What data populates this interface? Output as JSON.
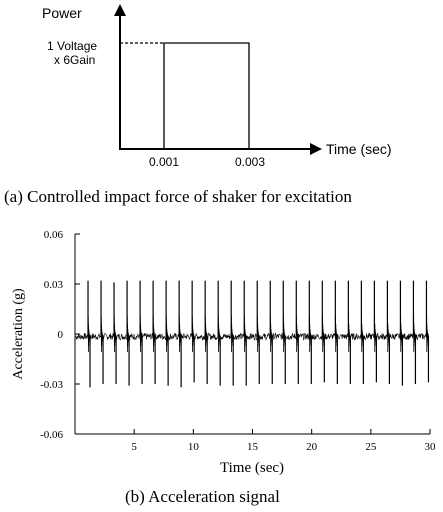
{
  "charts": {
    "a": {
      "caption": "(a) Controlled impact force of shaker for excitation",
      "ylabel": "Power",
      "xlabel": "Time (sec)",
      "annotation_line1": "1 Voltage",
      "annotation_line2": "x 6Gain"
    },
    "b": {
      "caption": "(b) Acceleration signal",
      "ylabel": "Acceleration (g)",
      "xlabel": "Time (sec)"
    }
  },
  "chart_data": [
    {
      "type": "line",
      "title": "",
      "xlabel": "Time (sec)",
      "ylabel": "Power",
      "x_ticks": [
        "0.001",
        "0.003"
      ],
      "series": [
        {
          "x": [
            0.001,
            0.001,
            0.003,
            0.003
          ],
          "y": [
            0,
            6,
            6,
            0
          ]
        }
      ],
      "annotation": "1 Voltage x 6Gain",
      "grid": false
    },
    {
      "type": "line",
      "title": "",
      "xlabel": "Time (sec)",
      "ylabel": "Acceleration (g)",
      "xlim": [
        0,
        30
      ],
      "ylim": [
        -0.06,
        0.06
      ],
      "x_ticks": [
        5,
        10,
        15,
        20,
        25,
        30
      ],
      "y_ticks": [
        "0.06",
        "0.03",
        "0",
        "-0.03",
        "-0.06"
      ],
      "baseline": -0.0015,
      "noise_amplitude": 0.002,
      "impulse_times": [
        1.1,
        2.2,
        3.3,
        4.4,
        5.5,
        6.6,
        7.7,
        8.8,
        9.9,
        11.0,
        12.1,
        13.2,
        14.3,
        15.4,
        16.5,
        17.6,
        18.7,
        19.8,
        20.9,
        22.0,
        23.1,
        24.2,
        25.3,
        26.4,
        27.5,
        28.6,
        29.7
      ],
      "impulse_peak_max": [
        0.032,
        0.032,
        0.031,
        0.032,
        0.032,
        0.032,
        0.032,
        0.032,
        0.032,
        0.032,
        0.032,
        0.032,
        0.032,
        0.032,
        0.032,
        0.032,
        0.032,
        0.032,
        0.032,
        0.032,
        0.032,
        0.032,
        0.032,
        0.032,
        0.032,
        0.032,
        0.032
      ],
      "impulse_peak_min": [
        -0.032,
        -0.03,
        -0.03,
        -0.031,
        -0.03,
        -0.03,
        -0.031,
        -0.032,
        -0.029,
        -0.03,
        -0.031,
        -0.031,
        -0.031,
        -0.03,
        -0.03,
        -0.03,
        -0.03,
        -0.03,
        -0.029,
        -0.03,
        -0.03,
        -0.03,
        -0.029,
        -0.03,
        -0.031,
        -0.03,
        -0.029
      ],
      "grid": false
    }
  ]
}
